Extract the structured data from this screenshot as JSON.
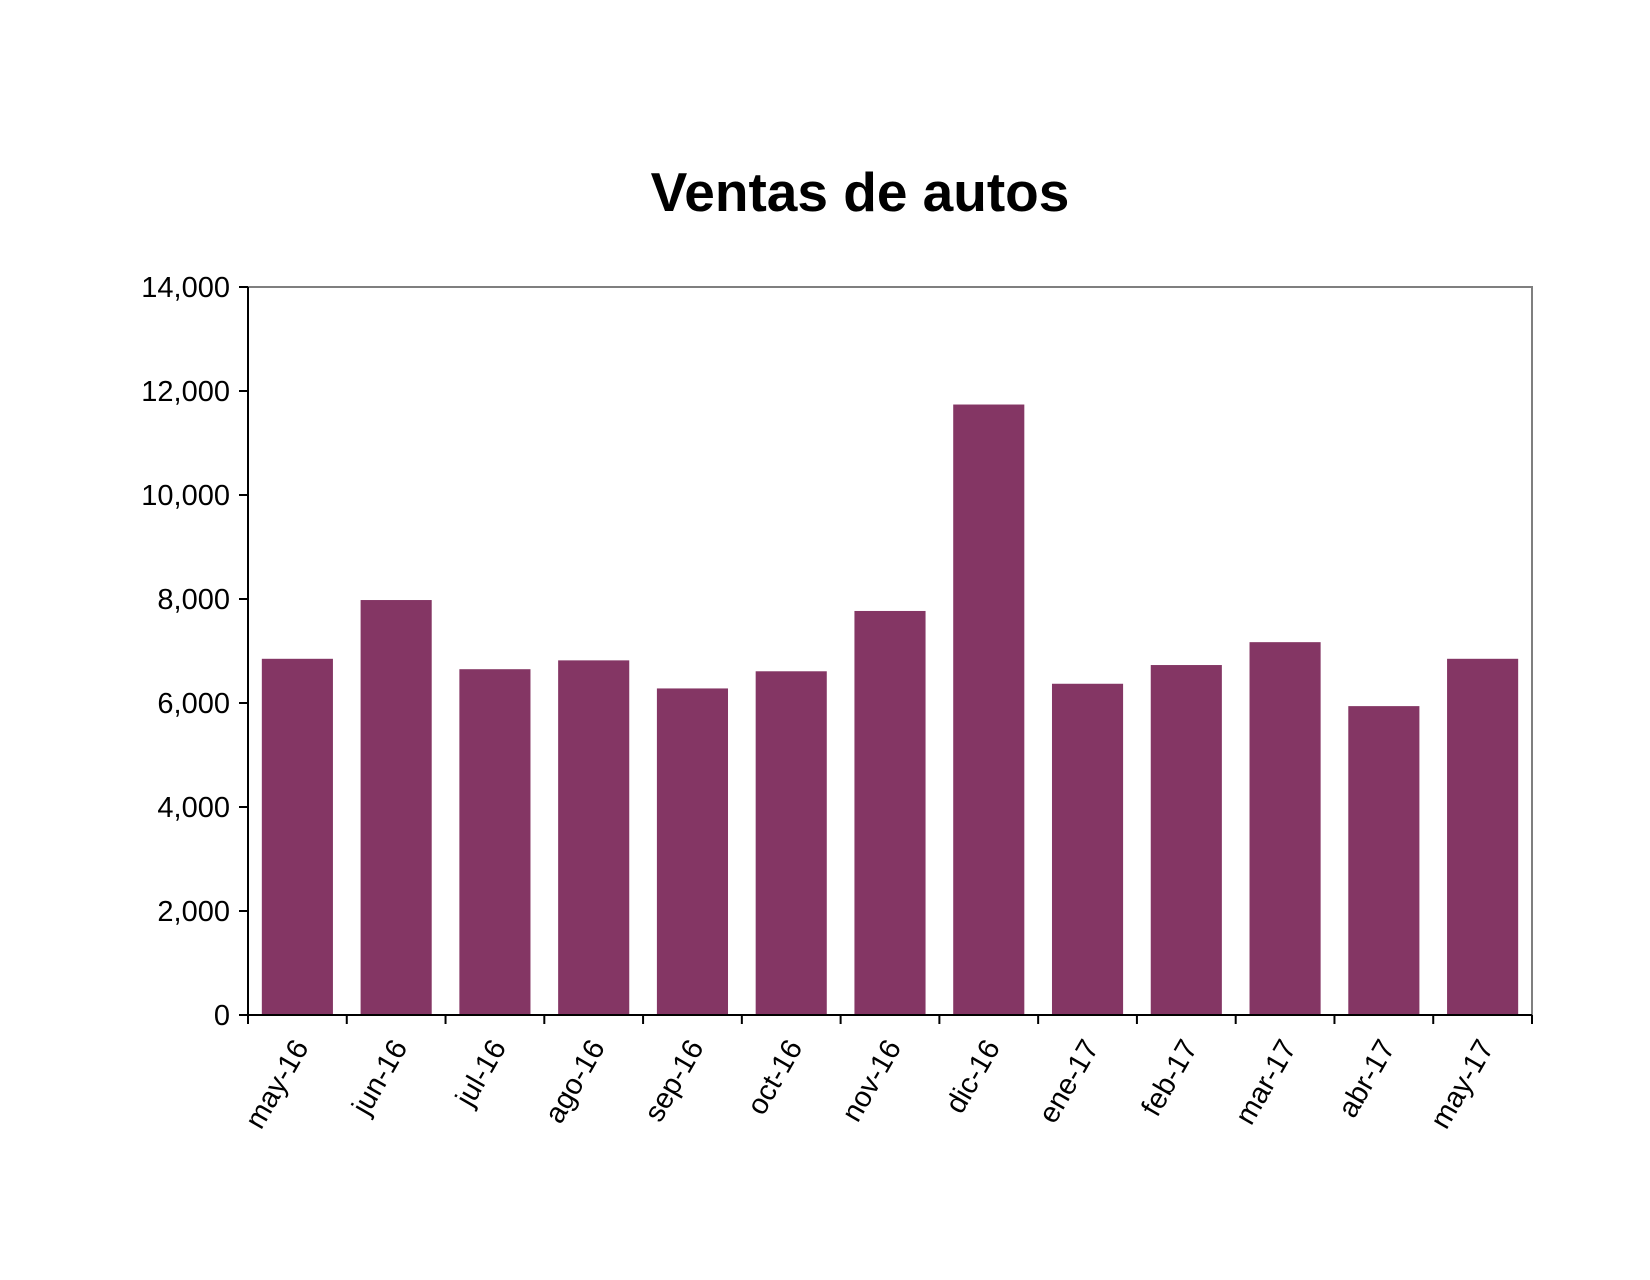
{
  "chart_data": {
    "type": "bar",
    "title": "Ventas de autos",
    "xlabel": "",
    "ylabel": "",
    "categories": [
      "may-16",
      "jun-16",
      "jul-16",
      "ago-16",
      "sep-16",
      "oct-16",
      "nov-16",
      "dic-16",
      "ene-17",
      "feb-17",
      "mar-17",
      "abr-17",
      "may-17"
    ],
    "values": [
      6850,
      7980,
      6650,
      6820,
      6280,
      6610,
      7770,
      11740,
      6370,
      6730,
      7170,
      5940,
      6850
    ],
    "ylim": [
      0,
      14000
    ],
    "yticks": [
      0,
      2000,
      4000,
      6000,
      8000,
      10000,
      12000,
      14000
    ],
    "ytick_labels": [
      "0",
      "2,000",
      "4,000",
      "6,000",
      "8,000",
      "10,000",
      "12,000",
      "14,000"
    ],
    "grid": false,
    "legend": "none",
    "colors": {
      "bar": "#843664",
      "axis": "#7f7f7f"
    }
  }
}
